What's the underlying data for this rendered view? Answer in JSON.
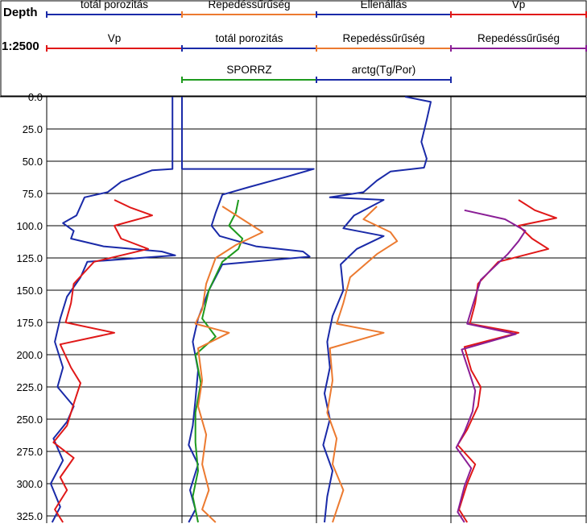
{
  "chart_data": {
    "type": "line",
    "depth_axis_title": "Depth",
    "scale_label": "1:2500",
    "depth_ticks": [
      "0.0",
      "25.0",
      "50.0",
      "75.0",
      "100.0",
      "125.0",
      "150.0",
      "175.0",
      "200.0",
      "225.0",
      "250.0",
      "275.0",
      "300.0",
      "325.0"
    ],
    "ylim": [
      0,
      330
    ],
    "grid": true,
    "colors": {
      "blue": "#1a2aa8",
      "red": "#e01818",
      "orange": "#ec7a30",
      "green": "#1e9a1e",
      "purple": "#8a1e96"
    },
    "tracks": [
      {
        "legend": [
          {
            "label": "totál porozitás",
            "color": "#1a2aa8"
          },
          {
            "label": "Vp",
            "color": "#e01818"
          }
        ],
        "series": [
          {
            "name": "totál porozitás",
            "color": "#1a2aa8",
            "points": [
              [
                0.93,
                0
              ],
              [
                0.93,
                56
              ],
              [
                0.78,
                57
              ],
              [
                0.55,
                66
              ],
              [
                0.45,
                74
              ],
              [
                0.28,
                78
              ],
              [
                0.22,
                92
              ],
              [
                0.12,
                98
              ],
              [
                0.2,
                104
              ],
              [
                0.18,
                110
              ],
              [
                0.42,
                116
              ],
              [
                0.85,
                120
              ],
              [
                0.95,
                123
              ],
              [
                0.3,
                128
              ],
              [
                0.25,
                140
              ],
              [
                0.15,
                155
              ],
              [
                0.1,
                172
              ],
              [
                0.06,
                190
              ],
              [
                0.12,
                210
              ],
              [
                0.08,
                225
              ],
              [
                0.2,
                240
              ],
              [
                0.15,
                252
              ],
              [
                0.05,
                265
              ],
              [
                0.12,
                282
              ],
              [
                0.03,
                300
              ],
              [
                0.1,
                318
              ],
              [
                0.04,
                330
              ]
            ]
          },
          {
            "name": "Vp",
            "color": "#e01818",
            "points": [
              [
                0.5,
                80
              ],
              [
                0.62,
                86
              ],
              [
                0.78,
                92
              ],
              [
                0.5,
                100
              ],
              [
                0.55,
                110
              ],
              [
                0.75,
                118
              ],
              [
                0.35,
                128
              ],
              [
                0.2,
                145
              ],
              [
                0.18,
                160
              ],
              [
                0.14,
                175
              ],
              [
                0.5,
                183
              ],
              [
                0.1,
                192
              ],
              [
                0.18,
                210
              ],
              [
                0.25,
                222
              ],
              [
                0.2,
                238
              ],
              [
                0.15,
                255
              ],
              [
                0.05,
                268
              ],
              [
                0.2,
                280
              ],
              [
                0.1,
                295
              ],
              [
                0.15,
                305
              ],
              [
                0.06,
                320
              ],
              [
                0.12,
                330
              ]
            ]
          }
        ]
      },
      {
        "legend": [
          {
            "label": "Repedéssűrűség",
            "color": "#ec7a30"
          },
          {
            "label": "totál porozitás",
            "color": "#1a2aa8"
          },
          {
            "label": "SPORRZ",
            "color": "#1e9a1e"
          }
        ],
        "series": [
          {
            "name": "totál porozitás",
            "color": "#1a2aa8",
            "points": [
              [
                0.0,
                0
              ],
              [
                0.0,
                56
              ],
              [
                0.98,
                56
              ],
              [
                0.78,
                62
              ],
              [
                0.5,
                70
              ],
              [
                0.3,
                76
              ],
              [
                0.25,
                90
              ],
              [
                0.22,
                100
              ],
              [
                0.28,
                108
              ],
              [
                0.55,
                116
              ],
              [
                0.9,
                120
              ],
              [
                0.95,
                124
              ],
              [
                0.3,
                130
              ],
              [
                0.2,
                150
              ],
              [
                0.12,
                172
              ],
              [
                0.08,
                190
              ],
              [
                0.12,
                212
              ],
              [
                0.1,
                235
              ],
              [
                0.08,
                255
              ],
              [
                0.05,
                270
              ],
              [
                0.12,
                285
              ],
              [
                0.06,
                305
              ],
              [
                0.1,
                320
              ],
              [
                0.05,
                330
              ]
            ]
          },
          {
            "name": "SPORRZ",
            "color": "#1e9a1e",
            "points": [
              [
                0.42,
                80
              ],
              [
                0.4,
                90
              ],
              [
                0.35,
                100
              ],
              [
                0.45,
                110
              ],
              [
                0.42,
                118
              ],
              [
                0.3,
                128
              ],
              [
                0.2,
                150
              ],
              [
                0.15,
                172
              ],
              [
                0.25,
                186
              ],
              [
                0.1,
                200
              ],
              [
                0.14,
                222
              ],
              [
                0.1,
                245
              ],
              [
                0.1,
                268
              ],
              [
                0.12,
                290
              ],
              [
                0.08,
                310
              ],
              [
                0.12,
                330
              ]
            ]
          },
          {
            "name": "Repedéssűrűség",
            "color": "#ec7a30",
            "points": [
              [
                0.3,
                85
              ],
              [
                0.45,
                95
              ],
              [
                0.6,
                105
              ],
              [
                0.4,
                115
              ],
              [
                0.25,
                125
              ],
              [
                0.18,
                145
              ],
              [
                0.15,
                165
              ],
              [
                0.1,
                176
              ],
              [
                0.35,
                183
              ],
              [
                0.12,
                195
              ],
              [
                0.15,
                220
              ],
              [
                0.12,
                240
              ],
              [
                0.18,
                262
              ],
              [
                0.15,
                285
              ],
              [
                0.2,
                305
              ],
              [
                0.15,
                320
              ],
              [
                0.25,
                330
              ]
            ]
          }
        ]
      },
      {
        "legend": [
          {
            "label": "Ellenállás",
            "color": "#1a2aa8"
          },
          {
            "label": "Repedéssűrűség",
            "color": "#ec7a30"
          },
          {
            "label": "arctg(Tg/Por)",
            "color": "#1a2aa8"
          }
        ],
        "series": [
          {
            "name": "Ellenállás",
            "color": "#1a2aa8",
            "points": [
              [
                0.66,
                0
              ],
              [
                0.85,
                4
              ],
              [
                0.82,
                18
              ],
              [
                0.78,
                35
              ],
              [
                0.82,
                48
              ],
              [
                0.8,
                55
              ],
              [
                0.55,
                58
              ],
              [
                0.45,
                65
              ],
              [
                0.35,
                74
              ],
              [
                0.1,
                78
              ],
              [
                0.5,
                80
              ],
              [
                0.28,
                92
              ],
              [
                0.2,
                102
              ],
              [
                0.5,
                108
              ],
              [
                0.3,
                118
              ],
              [
                0.18,
                130
              ],
              [
                0.2,
                150
              ],
              [
                0.12,
                170
              ],
              [
                0.08,
                190
              ],
              [
                0.1,
                210
              ],
              [
                0.06,
                230
              ],
              [
                0.1,
                250
              ],
              [
                0.05,
                270
              ],
              [
                0.12,
                290
              ],
              [
                0.08,
                310
              ],
              [
                0.06,
                330
              ]
            ]
          },
          {
            "name": "Repedéssűrűség",
            "color": "#ec7a30",
            "points": [
              [
                0.45,
                85
              ],
              [
                0.35,
                95
              ],
              [
                0.55,
                105
              ],
              [
                0.6,
                112
              ],
              [
                0.45,
                122
              ],
              [
                0.25,
                140
              ],
              [
                0.2,
                160
              ],
              [
                0.15,
                176
              ],
              [
                0.5,
                183
              ],
              [
                0.1,
                195
              ],
              [
                0.12,
                220
              ],
              [
                0.08,
                245
              ],
              [
                0.15,
                265
              ],
              [
                0.12,
                285
              ],
              [
                0.2,
                305
              ],
              [
                0.12,
                330
              ]
            ]
          }
        ]
      },
      {
        "legend": [
          {
            "label": "Vp",
            "color": "#e01818"
          },
          {
            "label": "Repedéssűrűség",
            "color": "#8a1e96"
          }
        ],
        "series": [
          {
            "name": "Vp",
            "color": "#e01818",
            "points": [
              [
                0.5,
                80
              ],
              [
                0.62,
                88
              ],
              [
                0.78,
                94
              ],
              [
                0.5,
                100
              ],
              [
                0.6,
                110
              ],
              [
                0.72,
                118
              ],
              [
                0.35,
                128
              ],
              [
                0.2,
                145
              ],
              [
                0.18,
                160
              ],
              [
                0.14,
                176
              ],
              [
                0.5,
                183
              ],
              [
                0.1,
                194
              ],
              [
                0.15,
                212
              ],
              [
                0.22,
                225
              ],
              [
                0.2,
                240
              ],
              [
                0.12,
                258
              ],
              [
                0.05,
                270
              ],
              [
                0.18,
                285
              ],
              [
                0.12,
                300
              ],
              [
                0.06,
                320
              ],
              [
                0.12,
                330
              ]
            ]
          },
          {
            "name": "Repedéssűrűség",
            "color": "#8a1e96",
            "points": [
              [
                0.1,
                88
              ],
              [
                0.4,
                95
              ],
              [
                0.55,
                104
              ],
              [
                0.5,
                112
              ],
              [
                0.42,
                122
              ],
              [
                0.22,
                142
              ],
              [
                0.16,
                162
              ],
              [
                0.12,
                176
              ],
              [
                0.48,
                184
              ],
              [
                0.08,
                196
              ],
              [
                0.14,
                215
              ],
              [
                0.18,
                228
              ],
              [
                0.16,
                244
              ],
              [
                0.1,
                260
              ],
              [
                0.04,
                272
              ],
              [
                0.15,
                288
              ],
              [
                0.1,
                302
              ],
              [
                0.05,
                322
              ],
              [
                0.1,
                330
              ]
            ]
          }
        ]
      }
    ]
  }
}
